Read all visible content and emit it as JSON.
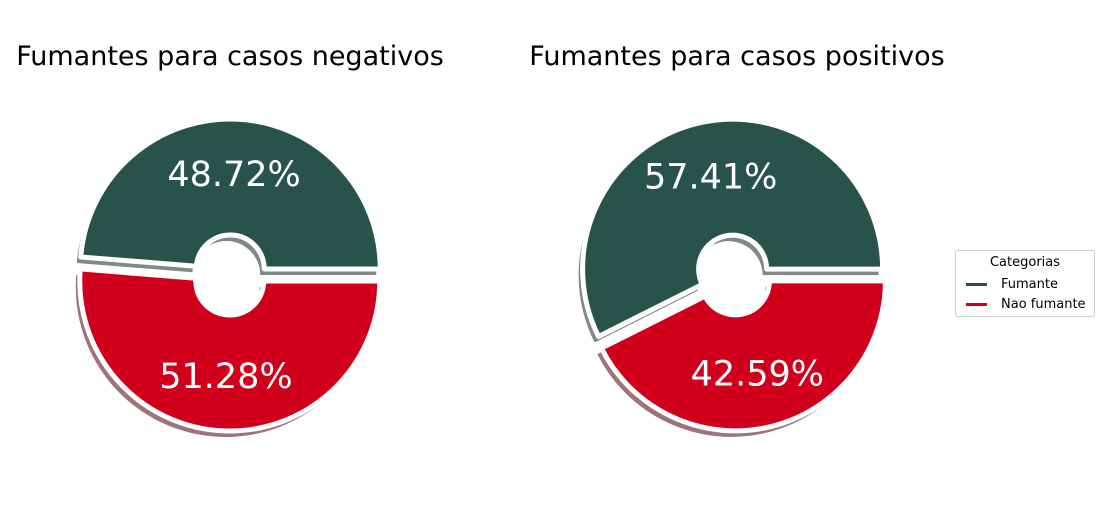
{
  "chart_data": [
    {
      "type": "pie",
      "title": "Fumantes para casos negativos",
      "slices": [
        {
          "label": "Fumante",
          "value": 48.72,
          "display": "48.72%"
        },
        {
          "label": "Nao fumante",
          "value": 51.28,
          "display": "51.28%"
        }
      ]
    },
    {
      "type": "pie",
      "title": "Fumantes para casos positivos",
      "slices": [
        {
          "label": "Fumante",
          "value": 57.41,
          "display": "57.41%"
        },
        {
          "label": "Nao fumante",
          "value": 42.59,
          "display": "42.59%"
        }
      ]
    }
  ],
  "legend": {
    "title": "Categorias",
    "placement": "right",
    "items": [
      {
        "label": "Fumante",
        "color": "#27534A"
      },
      {
        "label": "Nao fumante",
        "color": "#D0001C"
      }
    ]
  },
  "colors": {
    "fumante": "#27534A",
    "nao_fumante": "#D0001C",
    "shadow_fumante": "#7f8a87",
    "shadow_nao_fumante": "#9c7479"
  }
}
